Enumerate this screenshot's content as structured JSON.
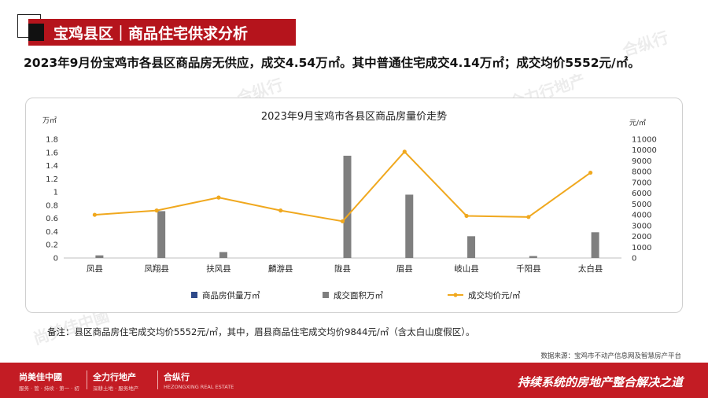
{
  "header": {
    "title": "宝鸡县区｜商品住宅供求分析"
  },
  "summary": "2023年9月份宝鸡市各县区商品房无供应，成交4.54万㎡。其中普通住宅成交4.14万㎡；成交均价5552元/㎡。",
  "note": "备注：县区商品房住宅成交均价5552元/㎡，其中，眉县商品住宅成交均价9844元/㎡（含太白山度假区）。",
  "source": "数据来源：宝鸡市不动产信息网及智慧房产平台",
  "footer": {
    "logos": [
      {
        "name": "尚美佳中國",
        "tagline": "服务 · 管 · 持续 · 第一 · 初"
      },
      {
        "name": "全力行地产",
        "tagline": "深耕土地 · 服务地产"
      },
      {
        "name": "合纵行",
        "tagline": "HEZONGXING REAL ESTATE"
      }
    ],
    "slogan": "持续系统的房地产整合解决之道"
  },
  "watermarks": [
    "尚美佳中國",
    "全力行地产",
    "合纵行"
  ],
  "colors": {
    "brand_red": "#b5141c",
    "bar_supply": "#2e4a8a",
    "bar_deal": "#7f7f7f",
    "line_price": "#f0a81e"
  },
  "chart_data": {
    "type": "bar",
    "title": "2023年9月宝鸡市各县区商品房量价走势",
    "categories": [
      "凤县",
      "凤翔县",
      "扶风县",
      "麟游县",
      "陇县",
      "眉县",
      "岐山县",
      "千阳县",
      "太白县"
    ],
    "left_axis": {
      "unit": "万㎡",
      "ylim": [
        0,
        1.8
      ],
      "ticks": [
        "0",
        "0.2",
        "0.4",
        "0.6",
        "0.8",
        "1",
        "1.2",
        "1.4",
        "1.6",
        "1.8"
      ]
    },
    "right_axis": {
      "unit": "元/㎡",
      "ylim": [
        0,
        11000
      ],
      "ticks": [
        "0",
        "1000",
        "2000",
        "3000",
        "4000",
        "5000",
        "6000",
        "7000",
        "8000",
        "9000",
        "10000",
        "11000"
      ]
    },
    "series": [
      {
        "name": "商品房供量万㎡",
        "type": "bar",
        "axis": "left",
        "values": [
          0,
          0,
          0,
          0,
          0,
          0,
          0,
          0,
          0
        ]
      },
      {
        "name": "成交面积万㎡",
        "type": "bar",
        "axis": "left",
        "values": [
          0.04,
          0.71,
          0.09,
          0,
          1.55,
          0.96,
          0.33,
          0.03,
          0.39
        ]
      },
      {
        "name": "成交均价元/㎡",
        "type": "line",
        "axis": "right",
        "values": [
          4000,
          4400,
          5600,
          4400,
          3400,
          9844,
          3900,
          3800,
          7900
        ]
      }
    ],
    "grid": false,
    "legend_position": "bottom"
  }
}
